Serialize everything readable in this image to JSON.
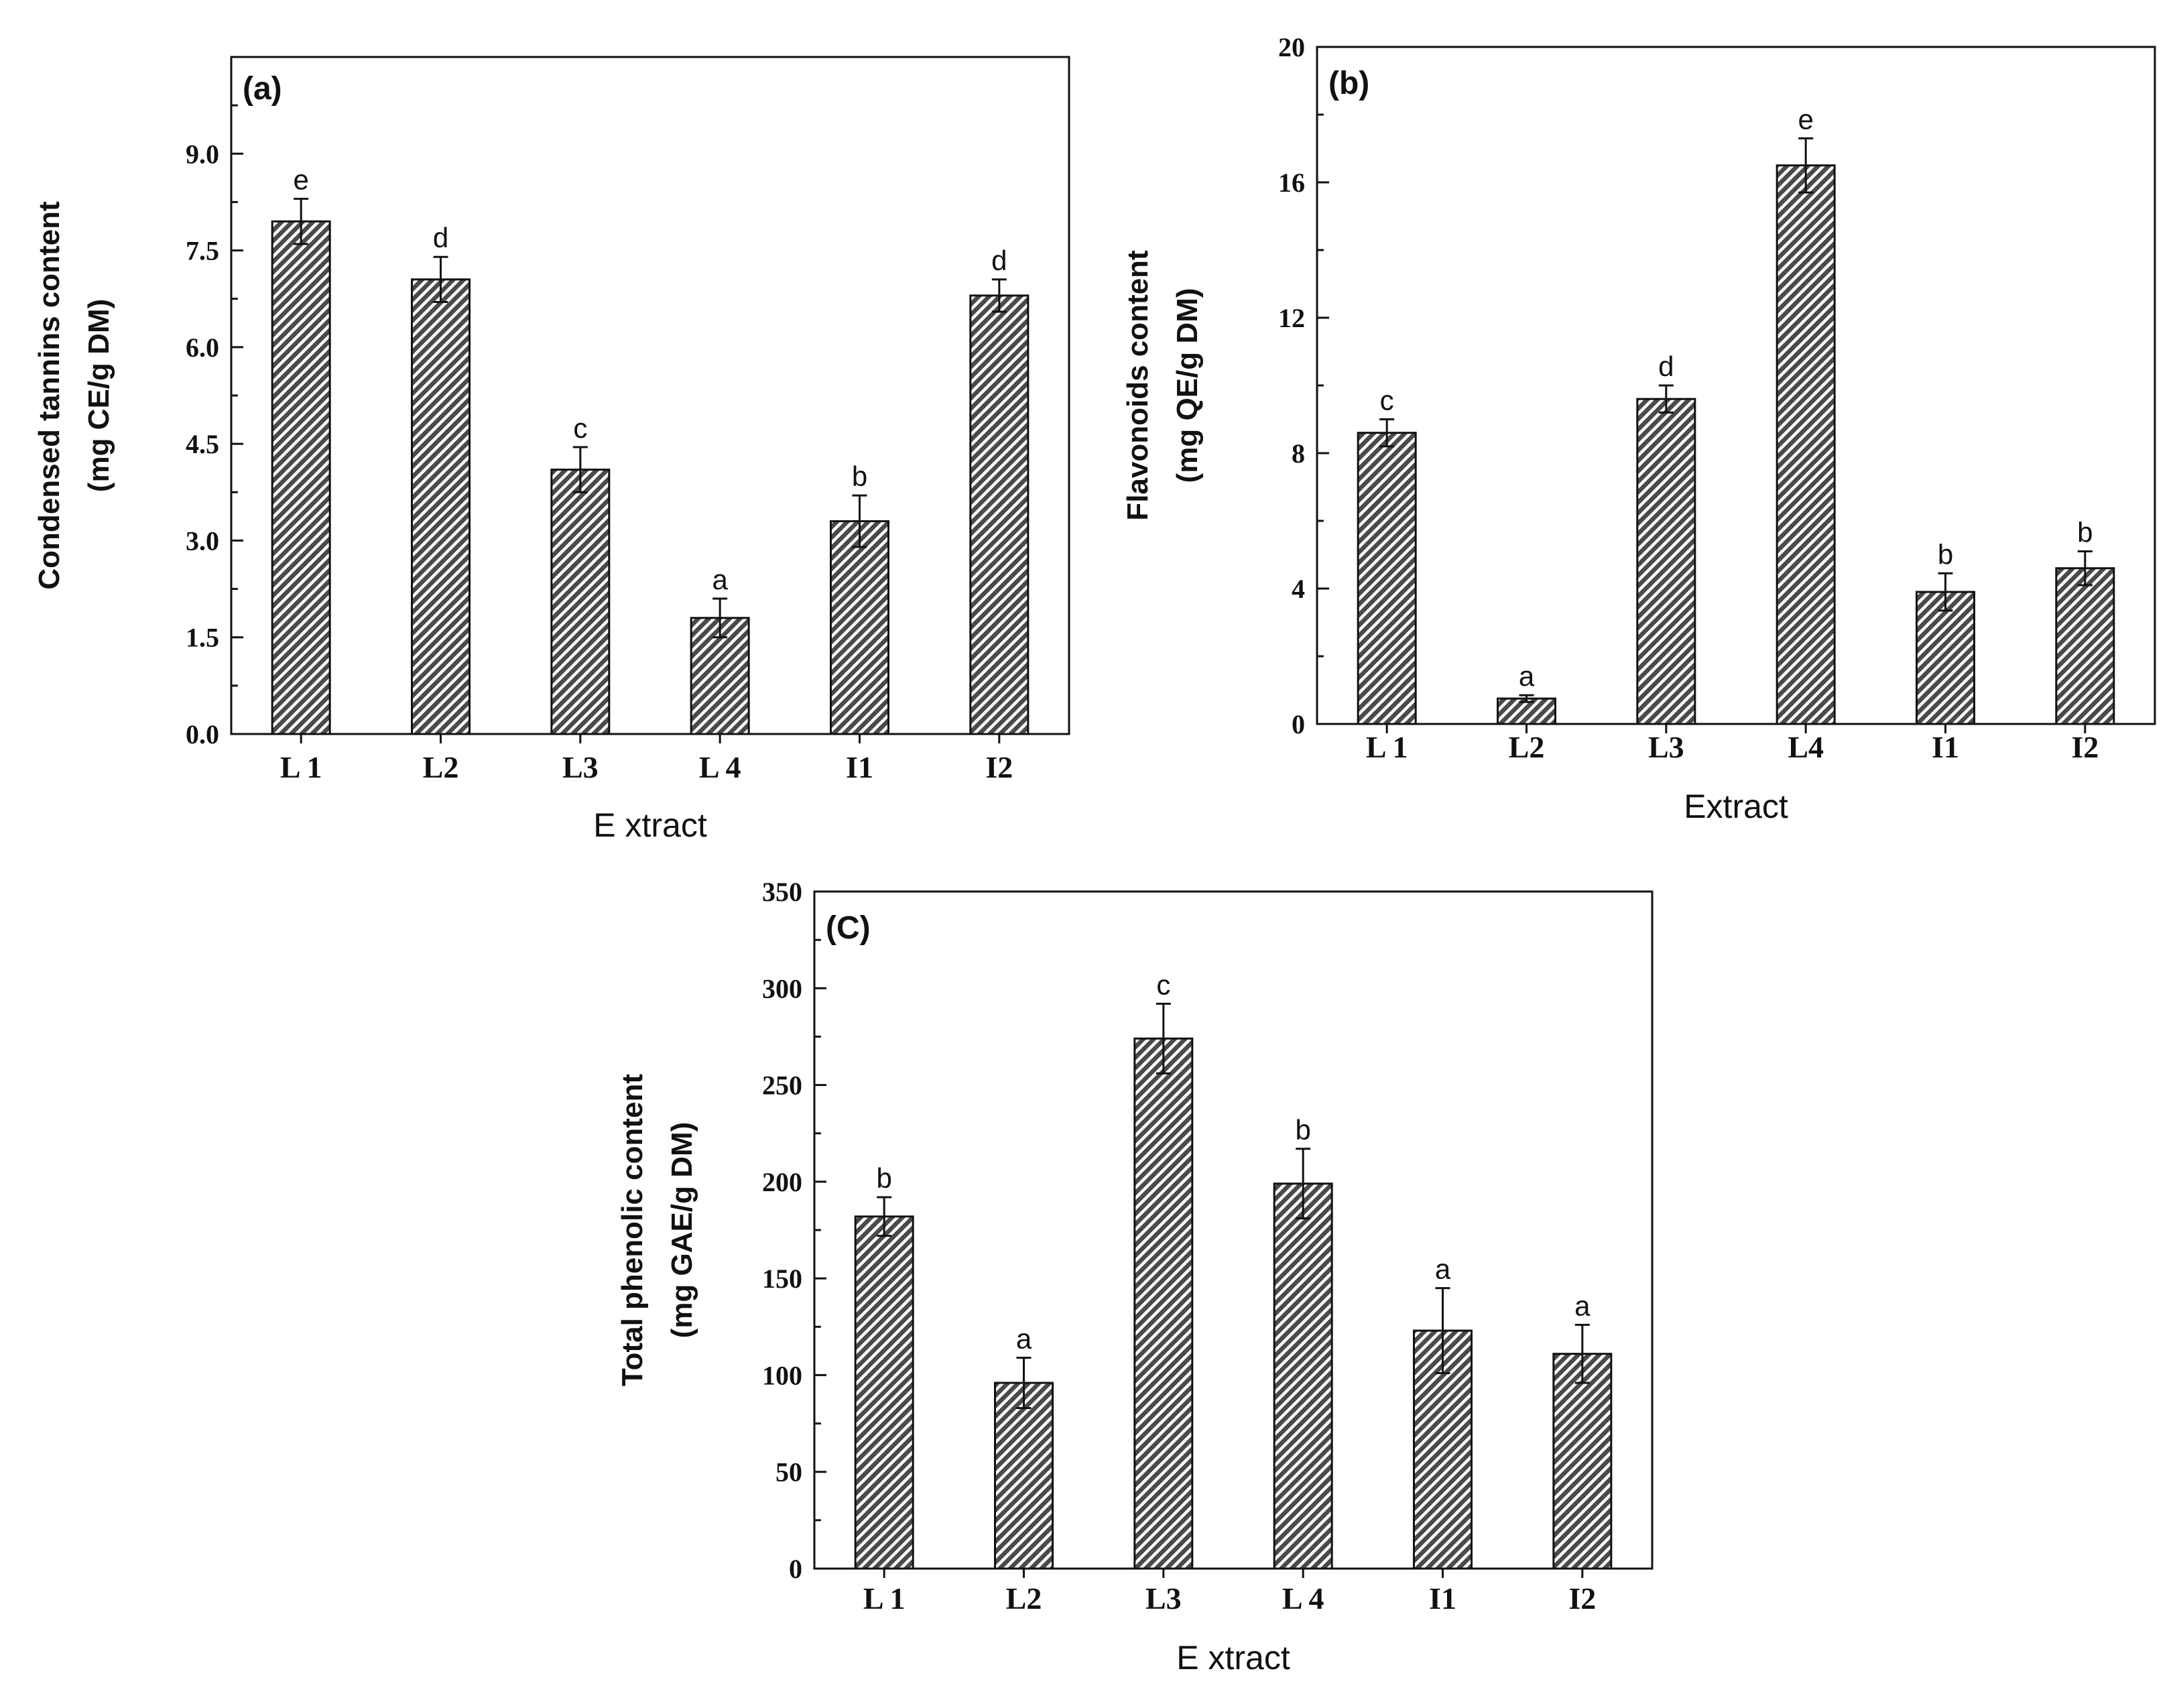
{
  "chart_data": [
    {
      "type": "bar",
      "panel_label": "(a)",
      "title": "",
      "ylabel_lines": [
        "Condensed tannins content",
        "(mg CE/g DM)"
      ],
      "xlabel": "E xtract",
      "categories": [
        "L 1",
        "L2",
        "L3",
        "L 4",
        "I1",
        "I2"
      ],
      "values": [
        7.95,
        7.05,
        4.1,
        1.8,
        3.3,
        6.8
      ],
      "errors": [
        0.35,
        0.35,
        0.35,
        0.3,
        0.4,
        0.25
      ],
      "significance": [
        "e",
        "d",
        "c",
        "a",
        "b",
        "d"
      ],
      "ylim": [
        0,
        10.5
      ],
      "yticks": [
        0,
        1.5,
        3,
        4.5,
        6,
        7.5,
        9
      ],
      "ytick_labels": [
        "0.0",
        "1.5",
        "3.0",
        "4.5",
        "6.0",
        "7.5",
        "9.0"
      ],
      "grid": false
    },
    {
      "type": "bar",
      "panel_label": "(b)",
      "title": "",
      "ylabel_lines": [
        "Flavonoids content",
        "(mg QE/g DM)"
      ],
      "xlabel": "Extract",
      "categories": [
        "L 1",
        "L2",
        "L3",
        "L4",
        "I1",
        "I2"
      ],
      "values": [
        8.6,
        0.75,
        9.6,
        16.5,
        3.9,
        4.6
      ],
      "errors": [
        0.4,
        0.1,
        0.4,
        0.8,
        0.55,
        0.5
      ],
      "significance": [
        "c",
        "a",
        "d",
        "e",
        "b",
        "b"
      ],
      "ylim": [
        0,
        20
      ],
      "yticks": [
        0,
        4,
        8,
        12,
        16,
        20
      ],
      "ytick_labels": [
        "0",
        "4",
        "8",
        "12",
        "16",
        "20"
      ],
      "grid": false
    },
    {
      "type": "bar",
      "panel_label": "(C)",
      "title": "",
      "ylabel_lines": [
        "Total phenolic content",
        "(mg GAE/g DM)"
      ],
      "xlabel": "E xtract",
      "categories": [
        "L 1",
        "L2",
        "L3",
        "L 4",
        "I1",
        "I2"
      ],
      "values": [
        182,
        96,
        274,
        199,
        123,
        111
      ],
      "errors": [
        10,
        13,
        18,
        18,
        22,
        15
      ],
      "significance": [
        "b",
        "a",
        "c",
        "b",
        "a",
        "a"
      ],
      "ylim": [
        0,
        350
      ],
      "yticks": [
        0,
        50,
        100,
        150,
        200,
        250,
        300,
        350
      ],
      "ytick_labels": [
        "0",
        "50",
        "100",
        "150",
        "200",
        "250",
        "300",
        "350"
      ],
      "grid": false
    }
  ]
}
